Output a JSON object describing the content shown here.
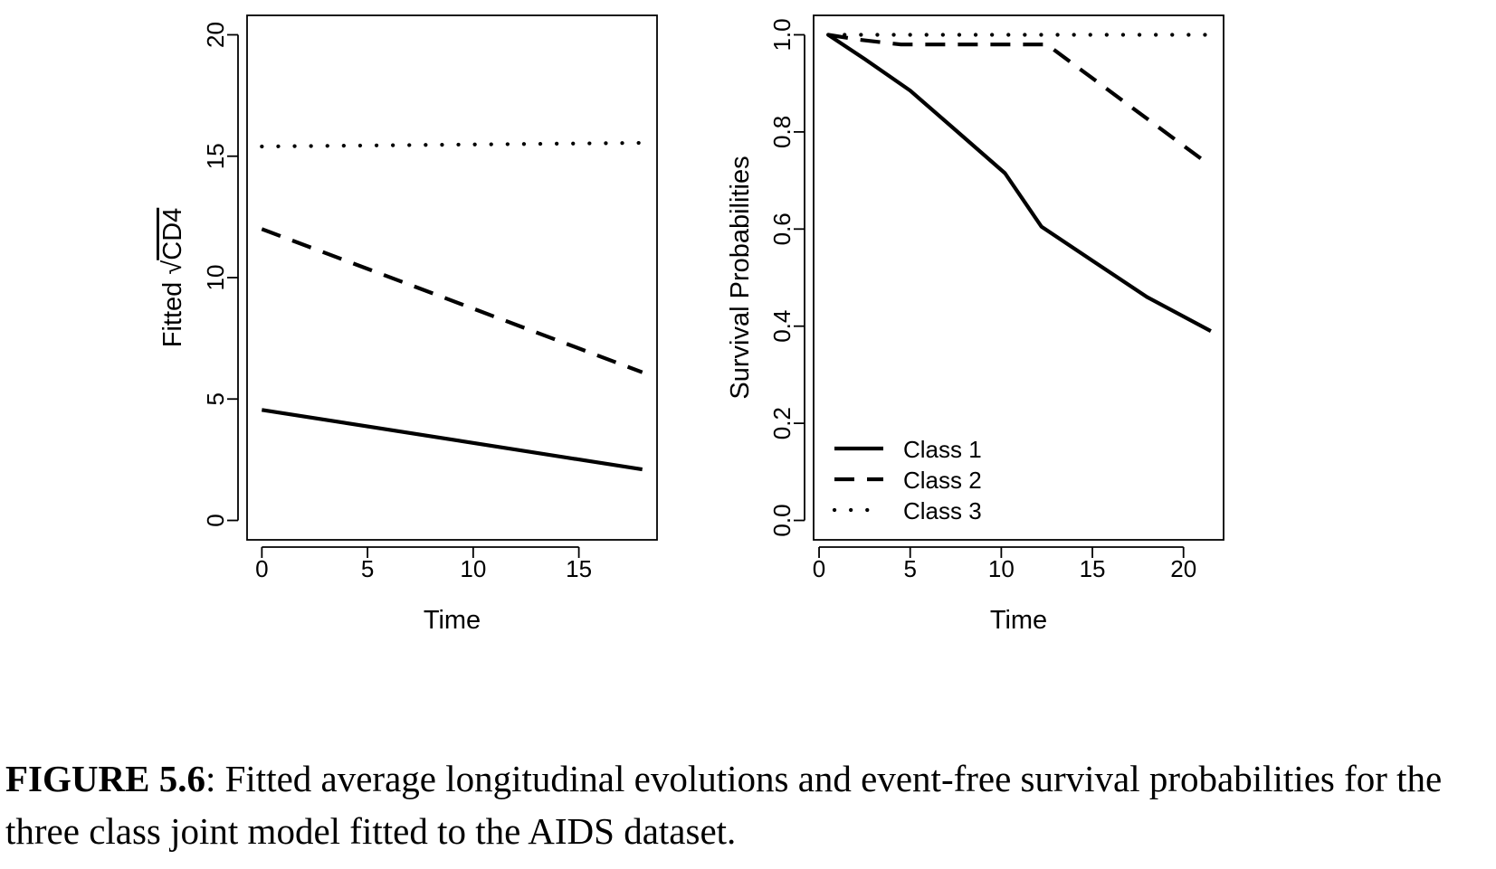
{
  "chart_data": [
    {
      "type": "line",
      "xlabel": "Time",
      "ylabel_prefix": "Fitted",
      "ylabel_sqrt": "CD4",
      "xlim": [
        -0.7,
        18.7
      ],
      "ylim": [
        -0.8,
        20.8
      ],
      "xticks": [
        0,
        5,
        10,
        15
      ],
      "yticks": [
        0,
        5,
        10,
        15,
        20
      ],
      "grid": false,
      "series": [
        {
          "style": "solid",
          "x": [
            0,
            18
          ],
          "y": [
            4.55,
            2.1
          ]
        },
        {
          "style": "dashed",
          "x": [
            0,
            18
          ],
          "y": [
            12.0,
            6.1
          ]
        },
        {
          "style": "dotted",
          "x": [
            0,
            18
          ],
          "y": [
            15.4,
            15.55
          ]
        }
      ]
    },
    {
      "type": "line",
      "xlabel": "Time",
      "ylabel": "Survival Probabilities",
      "xlim": [
        -0.3,
        22.2
      ],
      "ylim": [
        -0.04,
        1.04
      ],
      "xticks": [
        0,
        5,
        10,
        15,
        20
      ],
      "yticks": [
        0.0,
        0.2,
        0.4,
        0.6,
        0.8,
        1.0
      ],
      "grid": false,
      "legend_position": "bottom-left",
      "series": [
        {
          "name": "Class 1",
          "style": "solid",
          "x": [
            0.5,
            2.5,
            5,
            7.3,
            10.2,
            12.2,
            15,
            18,
            21.5
          ],
          "y": [
            1.0,
            0.95,
            0.885,
            0.81,
            0.715,
            0.605,
            0.535,
            0.46,
            0.39
          ]
        },
        {
          "name": "Class 2",
          "style": "dashed",
          "x": [
            0.5,
            2.2,
            4.5,
            10,
            12.5,
            21.5
          ],
          "y": [
            1.0,
            0.99,
            0.98,
            0.98,
            0.98,
            0.73
          ]
        },
        {
          "name": "Class 3",
          "style": "dotted",
          "x": [
            0.5,
            21.5
          ],
          "y": [
            1.0,
            1.0
          ]
        }
      ]
    }
  ],
  "caption": {
    "label": "FIGURE 5.6",
    "text": ": Fitted average longitudinal evolutions and event-free survival probabilities for the three class joint model fitted to the AIDS dataset."
  }
}
